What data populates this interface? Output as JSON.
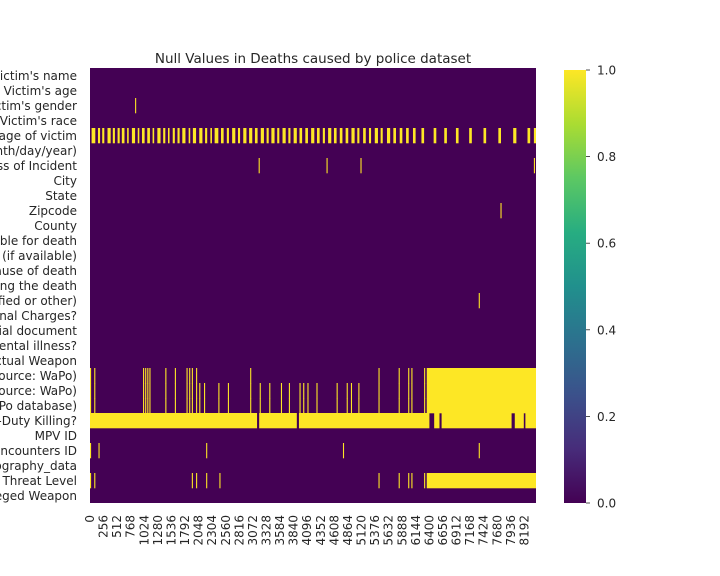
{
  "chart_data": {
    "type": "heatmap",
    "title": "Null Values in Deaths caused by police dataset",
    "xlabel": "",
    "ylabel": "",
    "n_rows": 8410,
    "x_tick_labels": [
      "0",
      "256",
      "512",
      "768",
      "1024",
      "1280",
      "1536",
      "1792",
      "2048",
      "2304",
      "2560",
      "2816",
      "3072",
      "3328",
      "3584",
      "3840",
      "4096",
      "4352",
      "4608",
      "4864",
      "5120",
      "5376",
      "5632",
      "5888",
      "6144",
      "6400",
      "6656",
      "6912",
      "7168",
      "7424",
      "7680",
      "7936",
      "8192"
    ],
    "x_ticks": [
      0,
      256,
      512,
      768,
      1024,
      1280,
      1536,
      1792,
      2048,
      2304,
      2560,
      2816,
      3072,
      3328,
      3584,
      3840,
      4096,
      4352,
      4608,
      4864,
      5120,
      5376,
      5632,
      5888,
      6144,
      6400,
      6656,
      6912,
      7168,
      7424,
      7680,
      7936,
      8192
    ],
    "y_labels": [
      "Victim's name",
      "Victim's age",
      "Victim's gender",
      "Victim's race",
      "URL of image of victim",
      "Date of Incident (month/day/year)",
      "Street Address of Incident",
      "City",
      "State",
      "Zipcode",
      "County",
      "Agency responsible for death",
      "ORI Agency Identifier (if available)",
      "Cause of death",
      "A brief description of the circumstances surrounding the death",
      "Official disposition of death (justified or other)",
      "Criminal Charges?",
      "Link to news article or photo of official document",
      "Symptoms of mental illness?",
      "Armed/Unarmed Status / Actual Weapon",
      "Alleged Threat Level (Source: WaPo)",
      "Fleeing (Source: WaPo)",
      "Body Camera (Source: WaPo database)",
      "Off-Duty Killing?",
      "MPV ID",
      "Fatal Encounters ID",
      "geography_data",
      "Threat Level",
      "Alleged Weapon"
    ],
    "value_range": [
      0.0,
      1.0
    ],
    "colormap": "viridis",
    "colorbar_ticks": [
      "0.0",
      "0.2",
      "0.4",
      "0.6",
      "0.8",
      "1.0"
    ],
    "null_segments": [
      {
        "row": 2,
        "ranges": [
          [
            850,
            870
          ]
        ]
      },
      {
        "row": 4,
        "ranges": [
          [
            30,
            100
          ],
          [
            150,
            190
          ],
          [
            230,
            270
          ],
          [
            330,
            390
          ],
          [
            430,
            470
          ],
          [
            520,
            560
          ],
          [
            600,
            650
          ],
          [
            700,
            730
          ],
          [
            790,
            850
          ],
          [
            900,
            930
          ],
          [
            980,
            1030
          ],
          [
            1080,
            1130
          ],
          [
            1180,
            1210
          ],
          [
            1270,
            1330
          ],
          [
            1380,
            1420
          ],
          [
            1470,
            1500
          ],
          [
            1560,
            1600
          ],
          [
            1650,
            1690
          ],
          [
            1740,
            1800
          ],
          [
            1860,
            1890
          ],
          [
            1940,
            2000
          ],
          [
            2060,
            2120
          ],
          [
            2170,
            2210
          ],
          [
            2270,
            2300
          ],
          [
            2350,
            2420
          ],
          [
            2470,
            2520
          ],
          [
            2580,
            2620
          ],
          [
            2680,
            2740
          ],
          [
            2790,
            2830
          ],
          [
            2890,
            2950
          ],
          [
            3000,
            3060
          ],
          [
            3110,
            3160
          ],
          [
            3220,
            3280
          ],
          [
            3330,
            3370
          ],
          [
            3420,
            3480
          ],
          [
            3530,
            3570
          ],
          [
            3630,
            3690
          ],
          [
            3740,
            3780
          ],
          [
            3840,
            3900
          ],
          [
            3950,
            4000
          ],
          [
            4060,
            4110
          ],
          [
            4170,
            4230
          ],
          [
            4280,
            4330
          ],
          [
            4390,
            4430
          ],
          [
            4490,
            4550
          ],
          [
            4600,
            4650
          ],
          [
            4710,
            4760
          ],
          [
            4820,
            4870
          ],
          [
            4930,
            4990
          ],
          [
            5040,
            5080
          ],
          [
            5150,
            5200
          ],
          [
            5260,
            5300
          ],
          [
            5370,
            5430
          ],
          [
            5480,
            5520
          ],
          [
            5600,
            5660
          ],
          [
            5720,
            5770
          ],
          [
            5840,
            5890
          ],
          [
            5960,
            6010
          ],
          [
            6090,
            6140
          ],
          [
            6250,
            6300
          ],
          [
            6480,
            6530
          ],
          [
            6680,
            6730
          ],
          [
            6900,
            6950
          ],
          [
            7150,
            7200
          ],
          [
            7420,
            7470
          ],
          [
            7700,
            7750
          ],
          [
            7980,
            8040
          ],
          [
            8250,
            8300
          ],
          [
            8370,
            8410
          ]
        ]
      },
      {
        "row": 6,
        "ranges": [
          [
            3180,
            3200
          ],
          [
            4460,
            4480
          ],
          [
            5100,
            5120
          ],
          [
            8370,
            8390
          ]
        ]
      },
      {
        "row": 9,
        "ranges": [
          [
            7740,
            7760
          ]
        ]
      },
      {
        "row": 15,
        "ranges": [
          [
            7330,
            7350
          ]
        ]
      },
      {
        "row": 20,
        "ranges": [
          [
            0,
            20
          ],
          [
            80,
            100
          ],
          [
            1000,
            1020
          ],
          [
            1040,
            1060
          ],
          [
            1080,
            1100
          ],
          [
            1120,
            1140
          ],
          [
            1420,
            1440
          ],
          [
            1600,
            1620
          ],
          [
            1820,
            1840
          ],
          [
            1870,
            1890
          ],
          [
            1920,
            1940
          ],
          [
            2000,
            2020
          ],
          [
            3020,
            3040
          ],
          [
            5440,
            5460
          ],
          [
            5820,
            5840
          ],
          [
            6000,
            6020
          ],
          [
            6060,
            6080
          ],
          [
            6300,
            6320
          ],
          [
            6350,
            8410
          ]
        ]
      },
      {
        "row": 21,
        "ranges": [
          [
            0,
            20
          ],
          [
            80,
            100
          ],
          [
            1000,
            1020
          ],
          [
            1040,
            1060
          ],
          [
            1080,
            1100
          ],
          [
            1120,
            1140
          ],
          [
            1420,
            1440
          ],
          [
            1600,
            1620
          ],
          [
            1820,
            1840
          ],
          [
            1870,
            1890
          ],
          [
            1920,
            1940
          ],
          [
            2000,
            2020
          ],
          [
            2060,
            2080
          ],
          [
            2150,
            2170
          ],
          [
            2420,
            2440
          ],
          [
            2600,
            2620
          ],
          [
            3020,
            3040
          ],
          [
            3200,
            3220
          ],
          [
            3380,
            3400
          ],
          [
            3600,
            3620
          ],
          [
            3750,
            3770
          ],
          [
            3950,
            3970
          ],
          [
            4020,
            4040
          ],
          [
            4100,
            4120
          ],
          [
            4270,
            4290
          ],
          [
            4650,
            4670
          ],
          [
            4840,
            4860
          ],
          [
            4920,
            4940
          ],
          [
            5060,
            5080
          ],
          [
            5440,
            5460
          ],
          [
            5820,
            5840
          ],
          [
            6000,
            6020
          ],
          [
            6060,
            6080
          ],
          [
            6300,
            6320
          ],
          [
            6350,
            8410
          ]
        ]
      },
      {
        "row": 22,
        "ranges": [
          [
            0,
            20
          ],
          [
            80,
            100
          ],
          [
            1000,
            1020
          ],
          [
            1040,
            1060
          ],
          [
            1080,
            1100
          ],
          [
            1120,
            1140
          ],
          [
            1420,
            1440
          ],
          [
            1600,
            1620
          ],
          [
            1820,
            1840
          ],
          [
            1870,
            1890
          ],
          [
            1920,
            1940
          ],
          [
            2000,
            2020
          ],
          [
            2060,
            2080
          ],
          [
            2150,
            2170
          ],
          [
            2420,
            2440
          ],
          [
            2600,
            2620
          ],
          [
            3020,
            3040
          ],
          [
            3200,
            3220
          ],
          [
            3380,
            3400
          ],
          [
            3600,
            3620
          ],
          [
            3750,
            3770
          ],
          [
            3950,
            3970
          ],
          [
            4020,
            4040
          ],
          [
            4100,
            4120
          ],
          [
            4270,
            4290
          ],
          [
            4650,
            4670
          ],
          [
            4840,
            4860
          ],
          [
            4920,
            4940
          ],
          [
            5060,
            5080
          ],
          [
            5440,
            5460
          ],
          [
            5820,
            5840
          ],
          [
            6000,
            6020
          ],
          [
            6060,
            6080
          ],
          [
            6300,
            6320
          ],
          [
            6350,
            8410
          ]
        ]
      },
      {
        "row": 23,
        "ranges": [
          [
            0,
            3150
          ],
          [
            3190,
            3900
          ],
          [
            3940,
            6400
          ],
          [
            6490,
            6590
          ],
          [
            6630,
            7950
          ],
          [
            8010,
            8180
          ],
          [
            8210,
            8410
          ]
        ]
      },
      {
        "row": 25,
        "ranges": [
          [
            0,
            20
          ],
          [
            160,
            180
          ],
          [
            2190,
            2210
          ],
          [
            4770,
            4790
          ],
          [
            7330,
            7350
          ]
        ]
      },
      {
        "row": 27,
        "ranges": [
          [
            0,
            20
          ],
          [
            80,
            100
          ],
          [
            1920,
            1940
          ],
          [
            2000,
            2020
          ],
          [
            2190,
            2210
          ],
          [
            2440,
            2460
          ],
          [
            5440,
            5460
          ],
          [
            5820,
            5840
          ],
          [
            6000,
            6020
          ],
          [
            6060,
            6080
          ],
          [
            6300,
            6320
          ],
          [
            6350,
            8410
          ]
        ]
      }
    ]
  }
}
